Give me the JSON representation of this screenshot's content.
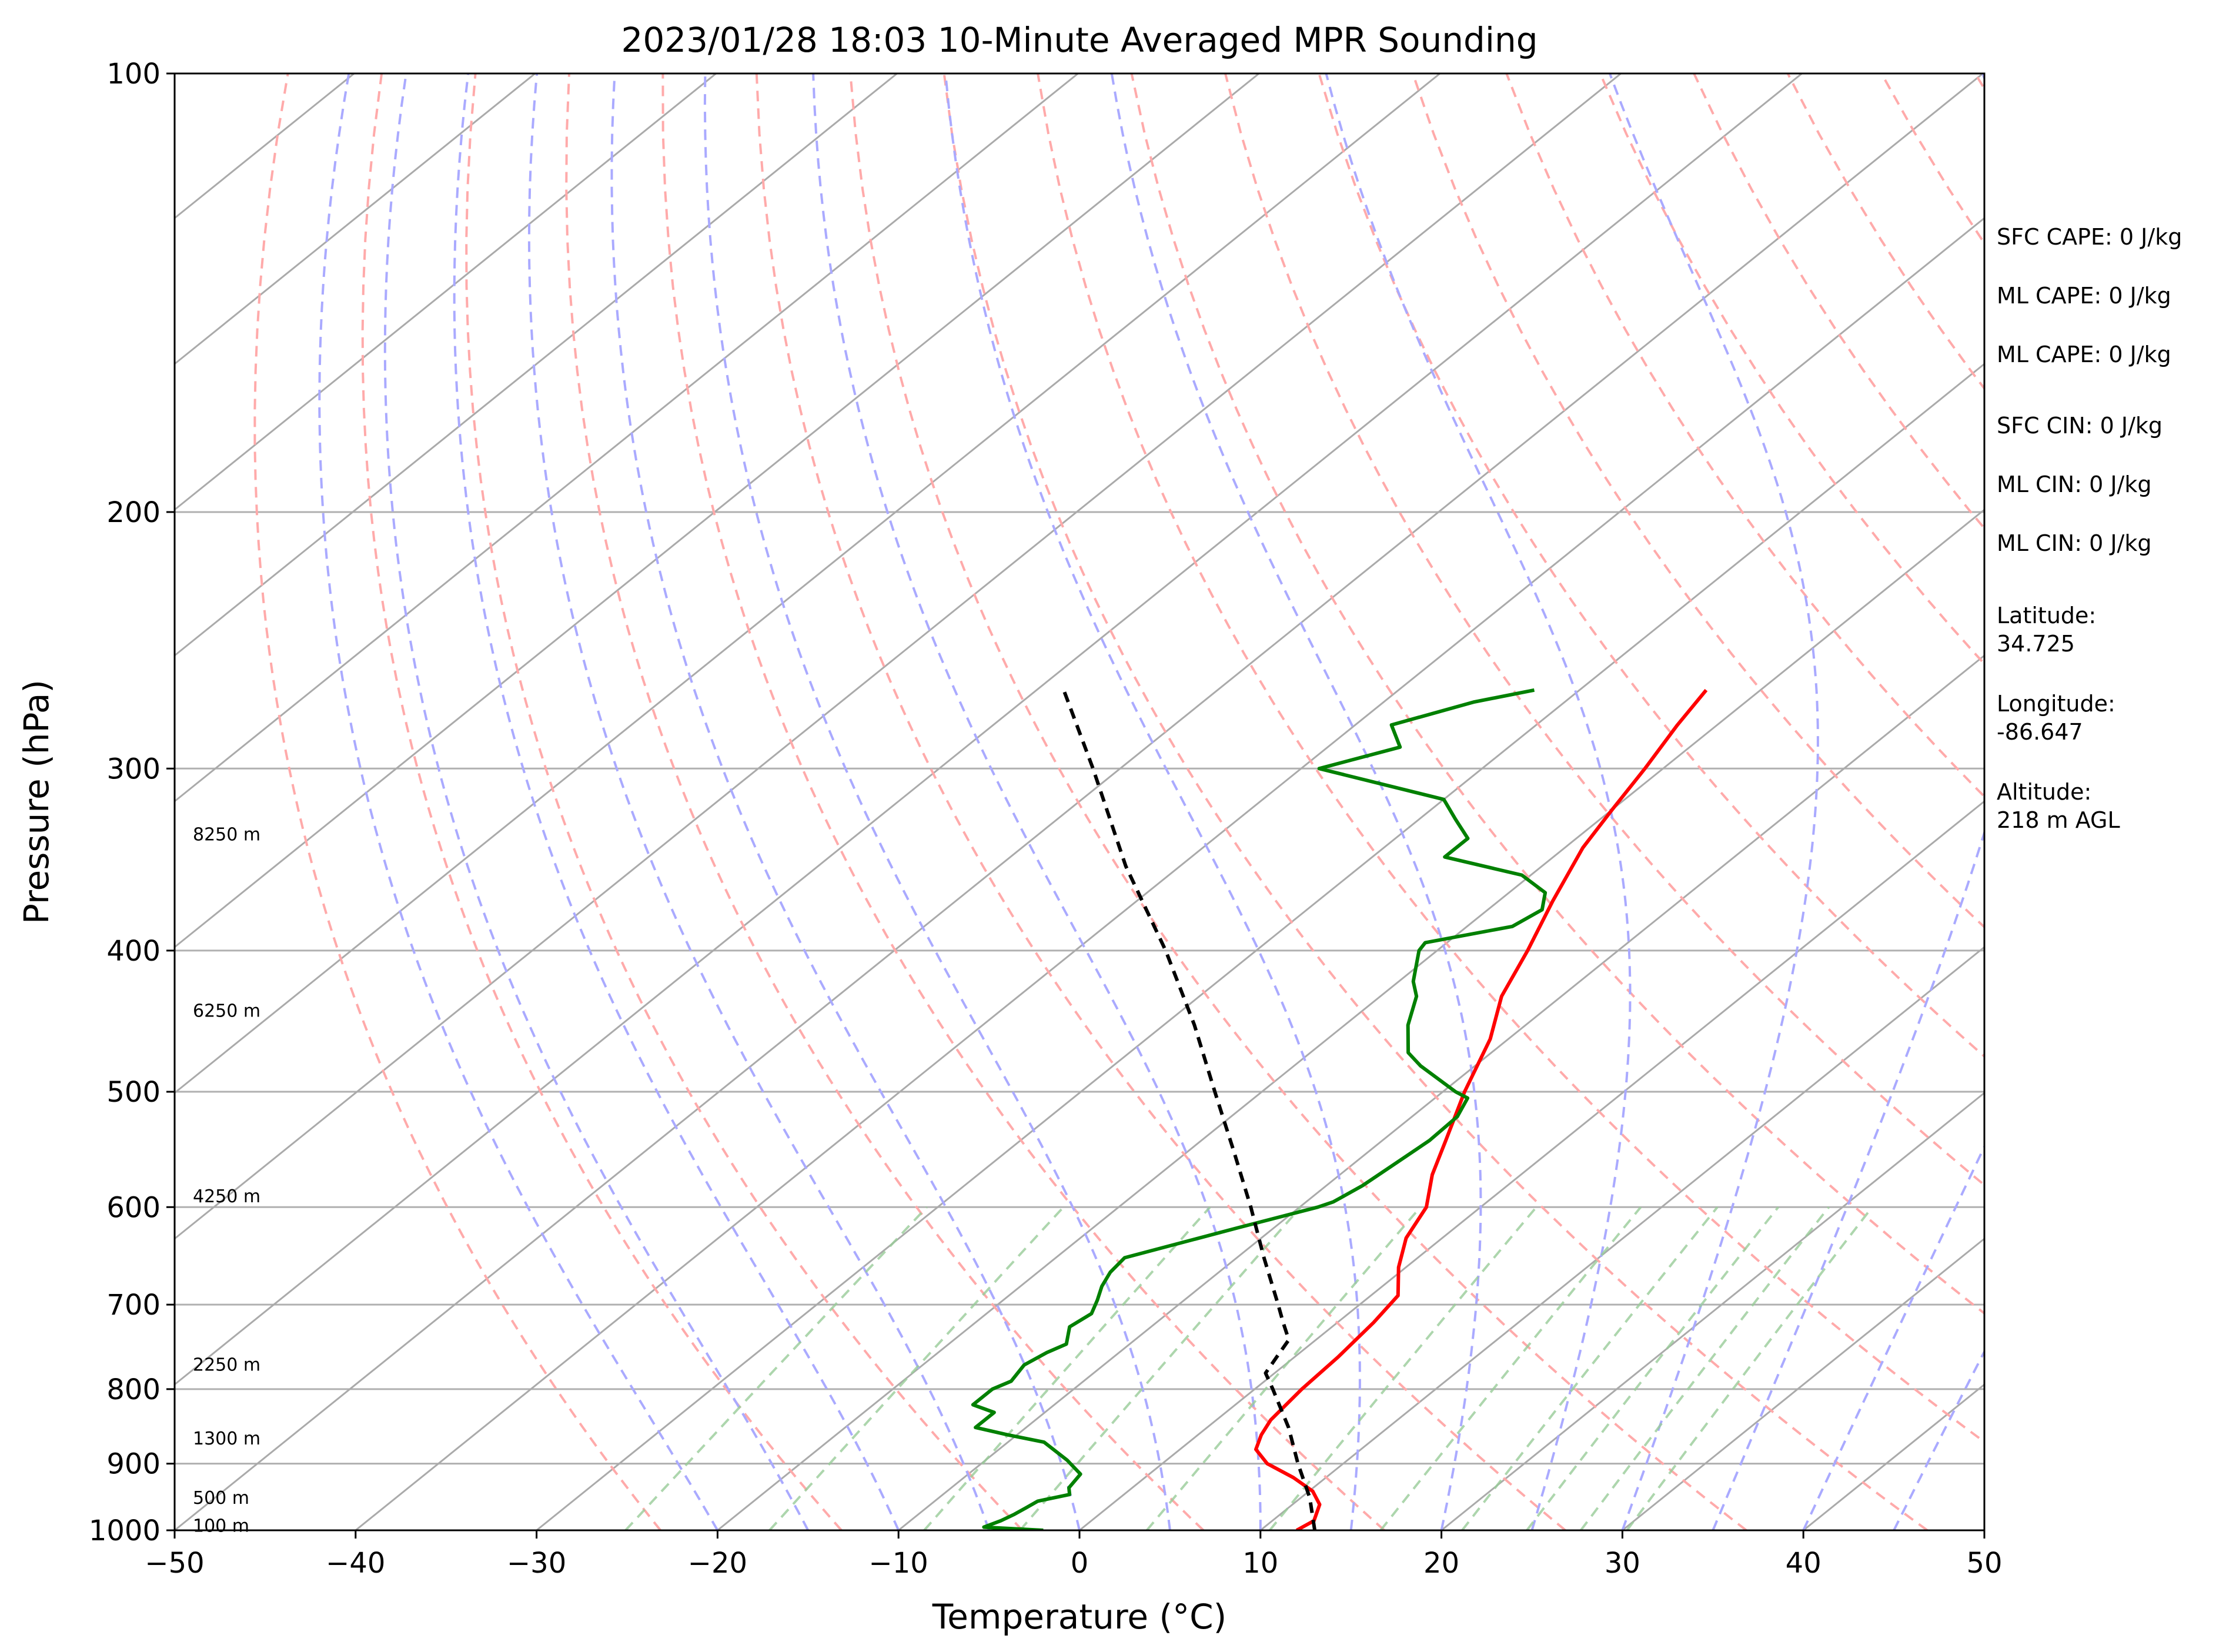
{
  "chart_data": {
    "type": "line",
    "title": "2023/01/28 18:03 10-Minute Averaged MPR Sounding",
    "xlabel": "Temperature (°C)",
    "ylabel": "Pressure (hPa)",
    "xlim": [
      -50,
      50
    ],
    "ylim": [
      1000,
      100
    ],
    "y_scale": "log",
    "skew": "skew-T log-p",
    "x_ticks": [
      "−50",
      "−40",
      "−30",
      "−20",
      "−10",
      "0",
      "10",
      "20",
      "30",
      "40",
      "50"
    ],
    "x_tick_values": [
      -50,
      -40,
      -30,
      -20,
      -10,
      0,
      10,
      20,
      30,
      40,
      50
    ],
    "y_ticks": [
      "1000",
      "900",
      "800",
      "700",
      "600",
      "500",
      "400",
      "300",
      "200",
      "100"
    ],
    "y_tick_values": [
      1000,
      900,
      800,
      700,
      600,
      500,
      400,
      300,
      200,
      100
    ],
    "grid": true,
    "height_labels": [
      {
        "text": "100 m",
        "pressure": 993
      },
      {
        "text": "500 m",
        "pressure": 950
      },
      {
        "text": "1300 m",
        "pressure": 865
      },
      {
        "text": "2250 m",
        "pressure": 770
      },
      {
        "text": "4250 m",
        "pressure": 590
      },
      {
        "text": "6250 m",
        "pressure": 440
      },
      {
        "text": "8250 m",
        "pressure": 333
      }
    ],
    "series": [
      {
        "color": "#ff0000",
        "pressure": [
          1000,
          985,
          960,
          940,
          920,
          900,
          880,
          860,
          840,
          800,
          760,
          720,
          690,
          660,
          630,
          600,
          570,
          540,
          500,
          460,
          430,
          400,
          370,
          340,
          320,
          300,
          280,
          265
        ],
        "values": [
          12.0,
          12.3,
          11.5,
          10.2,
          8.2,
          5.8,
          4.2,
          3.5,
          3.0,
          2.6,
          2.4,
          2.0,
          1.5,
          -0.4,
          -2.0,
          -3.0,
          -4.9,
          -6.5,
          -8.8,
          -11.0,
          -13.3,
          -15.0,
          -17.0,
          -19.0,
          -20.0,
          -21.0,
          -22.2,
          -23.0
        ]
      },
      {
        "color": "#008000",
        "pressure": [
          1000,
          995,
          985,
          975,
          965,
          955,
          945,
          935,
          915,
          895,
          870,
          860,
          850,
          830,
          820,
          800,
          790,
          770,
          755,
          745,
          725,
          710,
          695,
          680,
          665,
          650,
          620,
          600,
          595,
          580,
          560,
          540,
          520,
          505,
          500,
          480,
          470,
          450,
          430,
          420,
          400,
          395,
          385,
          375,
          365,
          355,
          345,
          335,
          325,
          315,
          300,
          290,
          280,
          270,
          265
        ],
        "values": [
          -2.0,
          -5.5,
          -5.0,
          -4.7,
          -4.5,
          -4.3,
          -3.0,
          -3.5,
          -3.8,
          -5.5,
          -8.0,
          -10.5,
          -12.8,
          -12.8,
          -14.5,
          -14.5,
          -14.0,
          -14.4,
          -14.0,
          -13.5,
          -14.5,
          -14.2,
          -14.8,
          -15.5,
          -16.0,
          -16.2,
          -12.0,
          -9.0,
          -8.5,
          -8.0,
          -7.7,
          -7.4,
          -7.5,
          -8.2,
          -9.3,
          -13.0,
          -14.6,
          -16.5,
          -18.0,
          -19.2,
          -21.0,
          -21.2,
          -17.5,
          -17.0,
          -18.0,
          -20.5,
          -26.0,
          -26.0,
          -28.0,
          -30.0,
          -39.0,
          -36.0,
          -38.0,
          -35.0,
          -32.5
        ]
      },
      {
        "color": "#000000",
        "style": "dashed",
        "pressure": [
          1000,
          950,
          900,
          850,
          800,
          780,
          760,
          740,
          720,
          700,
          650,
          600,
          550,
          500,
          450,
          400,
          350,
          300,
          265
        ],
        "values": [
          13.0,
          10.5,
          7.5,
          4.5,
          1.0,
          -0.5,
          -1.0,
          -1.5,
          -3.0,
          -4.5,
          -8.5,
          -12.7,
          -17.4,
          -22.6,
          -28.3,
          -35.0,
          -43.0,
          -51.5,
          -58.5
        ]
      }
    ]
  },
  "stats": {
    "sfc_cape": "SFC CAPE: 0 J/kg",
    "ml_cape": "ML CAPE: 0 J/kg",
    "ml_cape_2": "ML CAPE: 0 J/kg",
    "sfc_cin": "SFC CIN: 0 J/kg",
    "ml_cin": "ML CIN: 0 J/kg",
    "ml_cin_2": "ML CIN: 0 J/kg",
    "latitude_label": "Latitude:",
    "latitude_value": "34.725",
    "longitude_label": "Longitude:",
    "longitude_value": "-86.647",
    "altitude_label": "Altitude:",
    "altitude_value": "218 m AGL"
  },
  "colors": {
    "temperature": "#ff0000",
    "dewpoint": "#008000",
    "parcel": "#000000",
    "isotherms": "#aaaaaa",
    "dry_adiabats": "#ffaaaa",
    "moist_adiabats": "#aaaaff",
    "mixing_ratio": "#99cc99"
  }
}
